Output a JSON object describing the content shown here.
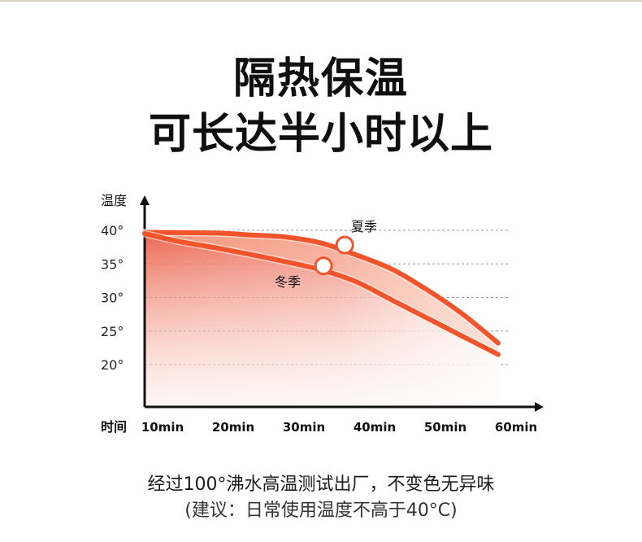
{
  "headline": {
    "line1": "隔热保温",
    "line2": "可长达半小时以上"
  },
  "chart_data": {
    "type": "line",
    "ylabel": "温度",
    "xlabel": "时间",
    "yticks": [
      "40°",
      "35°",
      "30°",
      "25°",
      "20°"
    ],
    "ytick_values": [
      40,
      35,
      30,
      25,
      20
    ],
    "xticks": [
      "10min",
      "20min",
      "30min",
      "40min",
      "50min",
      "60min"
    ],
    "xtick_values": [
      10,
      20,
      30,
      40,
      50,
      60
    ],
    "ylim": [
      15,
      45
    ],
    "xlim": [
      10,
      65
    ],
    "grid": "dashed horizontal",
    "series": [
      {
        "name": "夏季",
        "color": "#f2552b",
        "x": [
          10,
          20,
          25,
          30,
          35,
          40,
          45,
          50,
          55,
          60
        ],
        "y": [
          39.7,
          39.6,
          39.3,
          39.0,
          38.1,
          36.3,
          34.2,
          31.1,
          27.5,
          23.2
        ],
        "marker": {
          "x": 38.3,
          "y": 37.8
        }
      },
      {
        "name": "冬季",
        "color": "#f2552b",
        "x": [
          10,
          15,
          20,
          25,
          30,
          35,
          40,
          45,
          50,
          55,
          60
        ],
        "y": [
          39.5,
          38.3,
          37.4,
          36.4,
          35.3,
          34.1,
          32.3,
          29.6,
          26.9,
          24.2,
          21.5
        ],
        "marker": {
          "x": 35.3,
          "y": 34.7
        }
      }
    ]
  },
  "footer": {
    "line1": "经过100°沸水高温测试出厂，不变色无异味",
    "line2": "(建议：日常使用温度不高于40°C)"
  }
}
